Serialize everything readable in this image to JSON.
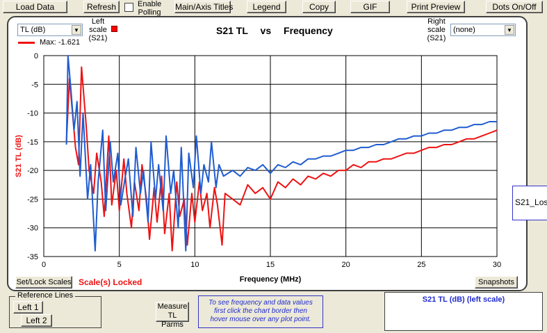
{
  "toolbar": {
    "load_data": "Load Data",
    "refresh": "Refresh",
    "enable_polling_line1": "Enable",
    "enable_polling_line2": "Polling",
    "main_axis_titles": "Main/Axis Titles",
    "legend": "Legend",
    "copy": "Copy",
    "gif": "GIF",
    "print_preview": "Print Preview",
    "dots": "Dots On/Off"
  },
  "left_select": {
    "value": "TL (dB)"
  },
  "left_scale": {
    "line1": "Left",
    "line2": "scale",
    "line3": "(S21)",
    "color": "#ff0000"
  },
  "right_scale": {
    "line1": "Right",
    "line2": "scale",
    "line3": "(S21)"
  },
  "right_select": {
    "value": "(none)"
  },
  "max_label": "Max: -1.621",
  "title": {
    "part1": "S21 TL",
    "part2": "vs",
    "part3": "Frequency"
  },
  "buttons": {
    "set_lock": "Set/Lock Scales",
    "snapshots": "Snapshots",
    "left1": "Left 1",
    "left2": "Left 2",
    "measure_line1": "Measure",
    "measure_line2": "TL Parms"
  },
  "scale_locked": "Scale(s) Locked",
  "reference_lines": "Reference Lines",
  "note": {
    "line1": "To see frequency and data values",
    "line2": "first click the chart border then",
    "line3": "hover mouse over any plot point."
  },
  "scale_box_text": "S21 TL (dB)  (left scale)",
  "side_box_text": "S21_Los",
  "chart_data": {
    "type": "line",
    "xlabel": "Frequency (MHz)",
    "ylabel": "S21 TL (dB)",
    "xlim": [
      0,
      30
    ],
    "ylim": [
      -35,
      0
    ],
    "xticks": [
      "0",
      "5",
      "10",
      "15",
      "20",
      "25",
      "30"
    ],
    "yticks": [
      "0",
      "-5",
      "-10",
      "-15",
      "-20",
      "-25",
      "-30",
      "-35"
    ],
    "grid": true,
    "series": [
      {
        "color": "#ee1111",
        "x": [
          1.5,
          1.7,
          1.9,
          2.1,
          2.3,
          2.5,
          2.8,
          3.0,
          3.3,
          3.5,
          3.8,
          4.0,
          4.3,
          4.5,
          4.8,
          5.0,
          5.3,
          5.5,
          5.8,
          6.0,
          6.3,
          6.5,
          6.8,
          7.0,
          7.3,
          7.5,
          7.8,
          8.0,
          8.3,
          8.5,
          8.8,
          9.0,
          9.3,
          9.5,
          9.8,
          10.0,
          10.3,
          10.5,
          10.8,
          11.0,
          11.3,
          11.5,
          11.8,
          12.0,
          12.5,
          13.0,
          13.5,
          14.0,
          14.5,
          15.0,
          15.5,
          16.0,
          16.5,
          17.0,
          17.5,
          18.0,
          18.5,
          19.0,
          19.5,
          20.0,
          20.5,
          21.0,
          21.5,
          22.0,
          22.5,
          23.0,
          23.5,
          24.0,
          24.5,
          25.0,
          25.5,
          26.0,
          26.5,
          27.0,
          27.5,
          28.0,
          28.5,
          29.0,
          29.5,
          30.0
        ],
        "values": [
          -15.0,
          -4.0,
          -10.0,
          -16.0,
          -19.0,
          -2.0,
          -12.0,
          -20.0,
          -24.0,
          -17.0,
          -22.0,
          -28.0,
          -14.0,
          -26.0,
          -20.0,
          -27.0,
          -18.0,
          -24.0,
          -30.0,
          -22.0,
          -27.0,
          -19.0,
          -25.0,
          -32.0,
          -23.0,
          -29.0,
          -21.0,
          -31.0,
          -24.0,
          -34.0,
          -22.0,
          -28.0,
          -25.0,
          -33.0,
          -24.0,
          -29.0,
          -22.0,
          -27.0,
          -24.0,
          -30.0,
          -23.0,
          -26.0,
          -33.0,
          -24.0,
          -25.0,
          -26.0,
          -22.5,
          -24.0,
          -23.0,
          -25.0,
          -22.0,
          -23.0,
          -21.5,
          -22.5,
          -21.0,
          -21.5,
          -20.5,
          -21.0,
          -20.0,
          -20.0,
          -19.0,
          -19.5,
          -18.5,
          -18.5,
          -18.0,
          -18.0,
          -17.5,
          -17.0,
          -17.0,
          -16.5,
          -16.0,
          -16.0,
          -15.5,
          -15.5,
          -15.0,
          -14.5,
          -14.5,
          -14.0,
          -13.5,
          -13.0
        ]
      },
      {
        "color": "#1f5cd0",
        "x": [
          1.5,
          1.6,
          1.8,
          2.0,
          2.2,
          2.4,
          2.6,
          2.9,
          3.1,
          3.4,
          3.6,
          3.9,
          4.1,
          4.4,
          4.6,
          4.9,
          5.1,
          5.4,
          5.6,
          5.9,
          6.1,
          6.4,
          6.6,
          6.9,
          7.1,
          7.4,
          7.6,
          7.9,
          8.1,
          8.4,
          8.6,
          8.9,
          9.1,
          9.4,
          9.6,
          9.9,
          10.1,
          10.4,
          10.6,
          10.9,
          11.1,
          11.4,
          11.6,
          11.9,
          12.5,
          13.0,
          13.5,
          14.0,
          14.5,
          15.0,
          15.5,
          16.0,
          16.5,
          17.0,
          17.5,
          18.0,
          18.5,
          19.0,
          19.5,
          20.0,
          20.5,
          21.0,
          21.5,
          22.0,
          22.5,
          23.0,
          23.5,
          24.0,
          24.5,
          25.0,
          25.5,
          26.0,
          26.5,
          27.0,
          27.5,
          28.0,
          28.5,
          29.0,
          29.5,
          30.0
        ],
        "values": [
          -15.5,
          0.0,
          -6.0,
          -13.0,
          -8.0,
          -21.0,
          -10.0,
          -25.0,
          -19.0,
          -34.0,
          -22.0,
          -13.0,
          -27.0,
          -15.0,
          -22.0,
          -17.0,
          -26.0,
          -21.0,
          -18.0,
          -28.0,
          -16.0,
          -24.0,
          -20.0,
          -29.0,
          -15.0,
          -25.0,
          -19.0,
          -27.0,
          -14.0,
          -24.0,
          -20.0,
          -30.0,
          -16.0,
          -34.0,
          -17.0,
          -23.0,
          -14.0,
          -24.0,
          -19.0,
          -22.0,
          -15.0,
          -23.0,
          -19.0,
          -21.0,
          -20.0,
          -21.0,
          -19.5,
          -20.0,
          -19.0,
          -20.5,
          -19.0,
          -19.5,
          -18.5,
          -19.0,
          -18.0,
          -18.0,
          -17.5,
          -17.5,
          -17.0,
          -16.5,
          -16.5,
          -16.0,
          -16.0,
          -15.5,
          -15.5,
          -15.0,
          -14.5,
          -14.5,
          -14.0,
          -14.0,
          -13.5,
          -13.5,
          -13.0,
          -13.0,
          -12.5,
          -12.5,
          -12.0,
          -12.0,
          -11.5,
          -11.5
        ]
      }
    ]
  }
}
